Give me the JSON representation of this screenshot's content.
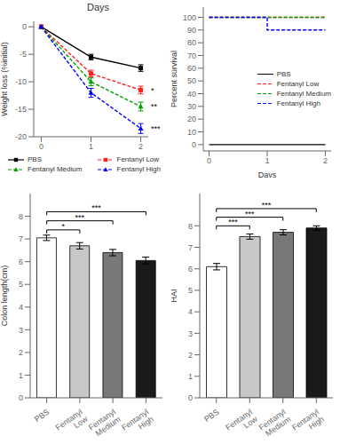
{
  "chart_data": [
    {
      "type": "line",
      "title": "Days",
      "y_label": "Weight loss (%initial)",
      "x": [
        0,
        1,
        2
      ],
      "xlim": [
        -0.15,
        2.15
      ],
      "xticks": [
        0,
        1,
        2
      ],
      "ylim": [
        -20,
        1
      ],
      "yticks": [
        0,
        -5,
        -10,
        -15,
        -20
      ],
      "legend": "bottom",
      "series": [
        {
          "name": "PBS",
          "color": "#000000",
          "marker": "square",
          "line_style": "solid",
          "values": [
            0,
            -5.5,
            -7.5
          ],
          "errors": [
            0,
            0.5,
            0.6
          ]
        },
        {
          "name": "Fentanyl Low",
          "color": "#ff2020",
          "marker": "square",
          "line_style": "dashed",
          "values": [
            0,
            -8.5,
            -11.5
          ],
          "errors": [
            0,
            0.6,
            0.7
          ]
        },
        {
          "name": "Fentanyl Medium",
          "color": "#00a000",
          "marker": "triangle",
          "line_style": "dashed",
          "values": [
            0,
            -10.0,
            -14.5
          ],
          "errors": [
            0,
            0.7,
            0.8
          ]
        },
        {
          "name": "Fentanyl High",
          "color": "#0000ff",
          "marker": "triangle",
          "line_style": "dashed",
          "values": [
            0,
            -12.0,
            -18.5
          ],
          "errors": [
            0,
            0.8,
            0.9
          ]
        }
      ],
      "annotations": [
        {
          "label": "*",
          "y": -11.5
        },
        {
          "label": "**",
          "y": -14.5
        },
        {
          "label": "***",
          "y": -18.5
        }
      ]
    },
    {
      "type": "line",
      "x_label": "Days",
      "y_label": "Percent survival",
      "xlim": [
        -0.1,
        2.1
      ],
      "xticks": [
        0,
        1,
        2
      ],
      "ylim": [
        -5,
        108
      ],
      "yticks": [
        0,
        10,
        20,
        30,
        40,
        50,
        60,
        70,
        80,
        90,
        100
      ],
      "legend": "right",
      "series": [
        {
          "name": "PBS",
          "color": "#000000",
          "line_style": "solid",
          "x": [
            0,
            2
          ],
          "values": [
            0,
            0
          ]
        },
        {
          "name": "Fentanyl Low",
          "color": "#ff2020",
          "line_style": "dashed",
          "x": [
            0,
            2
          ],
          "values": [
            100,
            100
          ]
        },
        {
          "name": "Fentanyl Medium",
          "color": "#00a000",
          "line_style": "dashed",
          "x": [
            0,
            2
          ],
          "values": [
            100,
            100
          ]
        },
        {
          "name": "Fentanyl High",
          "color": "#0000ff",
          "line_style": "dashed",
          "x": [
            0,
            1,
            1,
            2
          ],
          "values": [
            100,
            100,
            90,
            90
          ]
        }
      ]
    },
    {
      "type": "bar",
      "y_label": "Colon length(cm)",
      "categories": [
        "PBS",
        "Fentanyl\nLow",
        "Fentanyl\nMedium",
        "Fentanyl\nHigh"
      ],
      "values": [
        7.05,
        6.7,
        6.4,
        6.05
      ],
      "errors": [
        0.12,
        0.14,
        0.14,
        0.15
      ],
      "colors": [
        "#ffffff",
        "#c8c8c8",
        "#787878",
        "#1a1a1a"
      ],
      "ylim": [
        0,
        9
      ],
      "yticks": [
        0,
        1,
        2,
        3,
        4,
        5,
        6,
        7,
        8
      ],
      "annotations": [
        {
          "from": "PBS",
          "to": "Fentanyl\nLow",
          "y": 7.4,
          "label": "*"
        },
        {
          "from": "PBS",
          "to": "Fentanyl\nMedium",
          "y": 7.8,
          "label": "***"
        },
        {
          "from": "PBS",
          "to": "Fentanyl\nHigh",
          "y": 8.2,
          "label": "***"
        }
      ]
    },
    {
      "type": "bar",
      "y_label": "HAI",
      "categories": [
        "PBS",
        "Fentanyl\nLow",
        "Fentanyl\nMedium",
        "Fentanyl\nHigh"
      ],
      "values": [
        6.1,
        7.5,
        7.7,
        7.9
      ],
      "errors": [
        0.15,
        0.12,
        0.12,
        0.1
      ],
      "colors": [
        "#ffffff",
        "#c8c8c8",
        "#787878",
        "#1a1a1a"
      ],
      "ylim": [
        0,
        9.5
      ],
      "yticks": [
        0,
        1,
        2,
        3,
        4,
        5,
        6,
        7,
        8
      ],
      "annotations": [
        {
          "from": "PBS",
          "to": "Fentanyl\nLow",
          "y": 8.0,
          "label": "***"
        },
        {
          "from": "PBS",
          "to": "Fentanyl\nMedium",
          "y": 8.4,
          "label": "***"
        },
        {
          "from": "PBS",
          "to": "Fentanyl\nHigh",
          "y": 8.8,
          "label": "***"
        }
      ]
    }
  ]
}
